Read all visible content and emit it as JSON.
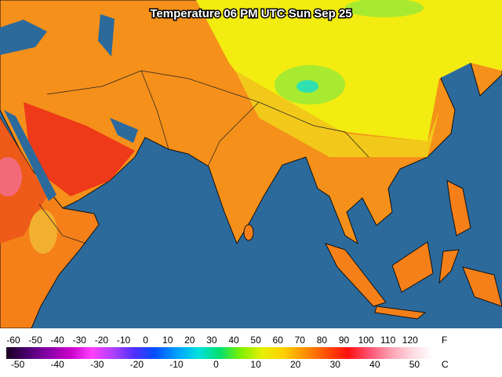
{
  "title": "Temperature 06 PM UTC Sun Sep 25",
  "legend": {
    "fahrenheit_unit": "F",
    "celsius_unit": "C",
    "fahrenheit_labels": [
      -60,
      -50,
      -40,
      -30,
      -20,
      -10,
      0,
      10,
      20,
      30,
      40,
      50,
      60,
      70,
      80,
      90,
      100,
      110,
      120
    ],
    "celsius_labels": [
      -50,
      -40,
      -30,
      -20,
      -10,
      0,
      10,
      20,
      30,
      40,
      50
    ],
    "colors": [
      "#1a0020",
      "#4b0070",
      "#8a00a8",
      "#c800c8",
      "#ff40ff",
      "#b040ff",
      "#5030ff",
      "#0050ff",
      "#00a0ff",
      "#00e0e0",
      "#00e070",
      "#80f000",
      "#e8f000",
      "#ffd000",
      "#ff9000",
      "#ff5000",
      "#ff1010",
      "#ff5070",
      "#ffa0b0",
      "#ffd8e0",
      "#ffffff"
    ]
  }
}
